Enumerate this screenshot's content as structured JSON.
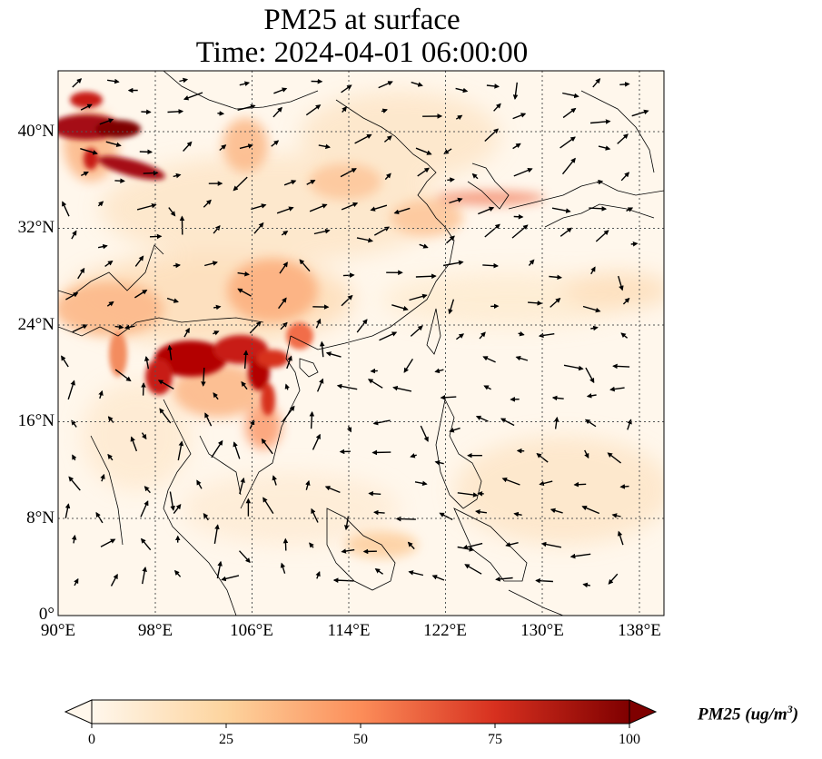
{
  "title_line1": "PM25 at surface",
  "title_line2": "Time: 2024-04-01 06:00:00",
  "map": {
    "lon_ticks": [
      "90°E",
      "98°E",
      "106°E",
      "114°E",
      "122°E",
      "130°E",
      "138°E"
    ],
    "lat_ticks": [
      "40°N",
      "32°N",
      "24°N",
      "16°N",
      "8°N",
      "0°"
    ],
    "lon_range": [
      90,
      140
    ],
    "lat_range": [
      0,
      45
    ],
    "colormap": "OrRd",
    "gridlines": "dotted"
  },
  "colorbar": {
    "label_main": "PM25 (ug/m",
    "label_sup": "3",
    "label_close": ")",
    "ticks": [
      "0",
      "25",
      "50",
      "75",
      "100"
    ],
    "vmin": 0,
    "vmax": 100,
    "extend": "both",
    "colors": [
      "#fff7ec",
      "#fdd49e",
      "#fc8d59",
      "#d7301f",
      "#7f0000"
    ]
  }
}
